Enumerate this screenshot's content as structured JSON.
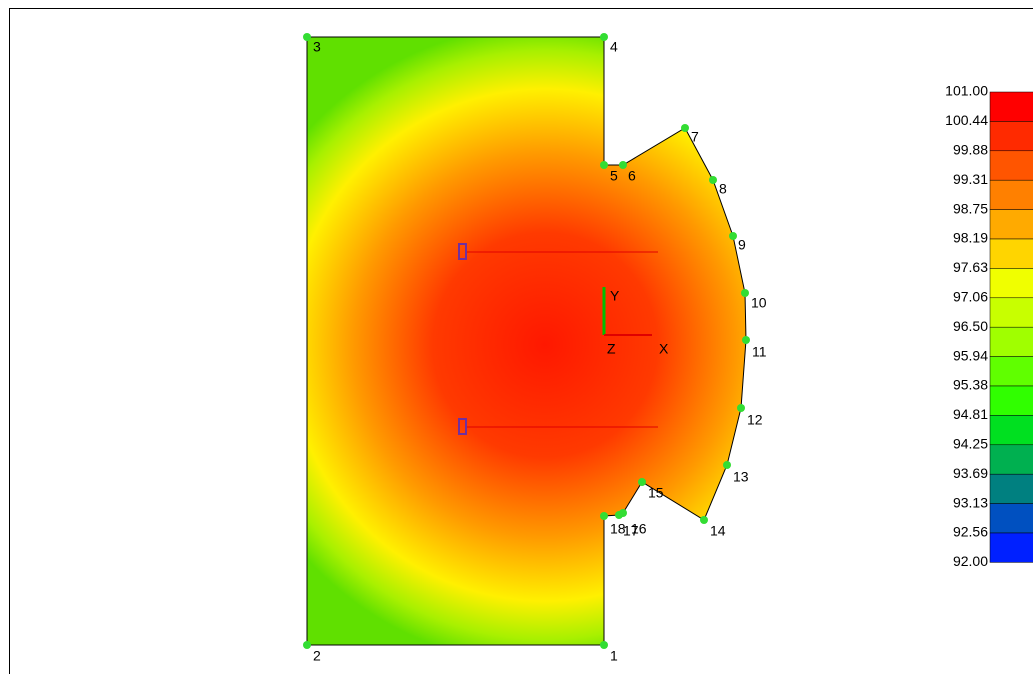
{
  "nodes": [
    "1",
    "2",
    "3",
    "4",
    "5",
    "6",
    "7",
    "8",
    "9",
    "10",
    "11",
    "12",
    "13",
    "14",
    "15",
    "16",
    "17",
    "18"
  ],
  "axes": {
    "x": "X",
    "y": "Y",
    "z": "Z"
  },
  "legend": {
    "labels": [
      "101.00",
      "100.44",
      "99.88",
      "99.31",
      "98.75",
      "98.19",
      "97.63",
      "97.06",
      "96.50",
      "95.94",
      "95.38",
      "94.81",
      "94.25",
      "93.69",
      "93.13",
      "92.56",
      "92.00"
    ],
    "colors": [
      "#ff0000",
      "#ff2a00",
      "#ff5500",
      "#ff8000",
      "#ffaa00",
      "#ffd500",
      "#f0ff00",
      "#c8ff00",
      "#a0ff00",
      "#60ff00",
      "#30ff00",
      "#00e020",
      "#00b050",
      "#008080",
      "#0050c0",
      "#0020ff"
    ]
  }
}
